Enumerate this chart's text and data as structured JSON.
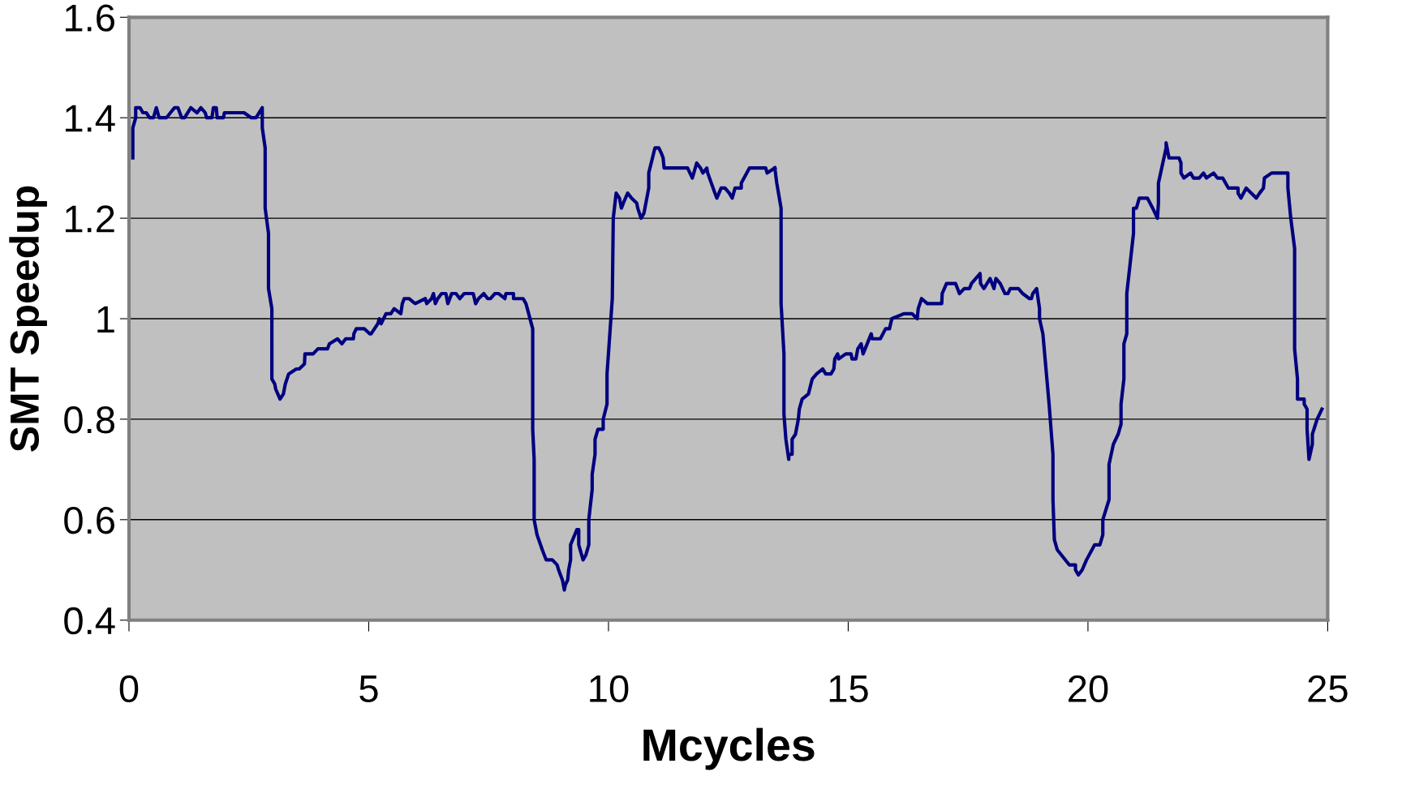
{
  "chart_data": {
    "type": "line",
    "xlabel": "Mcycles",
    "ylabel": "SMT Speedup",
    "xlim": [
      0,
      25
    ],
    "xticks": [
      0,
      5,
      10,
      15,
      20,
      25
    ],
    "ylim": [
      0.4,
      1.6
    ],
    "yticks": [
      0.4,
      0.6,
      0.8,
      1,
      1.2,
      1.4,
      1.6
    ],
    "grid": "y",
    "series": [
      {
        "color": "#000080",
        "x": [
          0.08,
          0.08,
          0.14,
          0.14,
          0.23,
          0.29,
          0.36,
          0.43,
          0.51,
          0.57,
          0.63,
          0.78,
          0.95,
          1.02,
          1.1,
          1.16,
          1.29,
          1.42,
          1.5,
          1.59,
          1.62,
          1.73,
          1.76,
          1.82,
          1.84,
          1.97,
          1.99,
          2.14,
          2.4,
          2.55,
          2.65,
          2.78,
          2.78,
          2.84,
          2.84,
          2.91,
          2.91,
          2.98,
          2.98,
          3.04,
          3.06,
          3.15,
          3.22,
          3.26,
          3.33,
          3.49,
          3.55,
          3.66,
          3.67,
          3.74,
          3.84,
          3.94,
          4.03,
          4.14,
          4.18,
          4.35,
          4.44,
          4.52,
          4.68,
          4.69,
          4.74,
          4.91,
          5.02,
          5.05,
          5.19,
          5.22,
          5.26,
          5.36,
          5.46,
          5.53,
          5.67,
          5.7,
          5.74,
          5.84,
          5.97,
          6.18,
          6.21,
          6.31,
          6.35,
          6.39,
          6.44,
          6.52,
          6.56,
          6.61,
          6.65,
          6.69,
          6.73,
          6.82,
          6.9,
          6.99,
          7.18,
          7.23,
          7.29,
          7.4,
          7.48,
          7.54,
          7.63,
          7.71,
          7.84,
          7.86,
          8.02,
          8.02,
          8.22,
          8.28,
          8.42,
          8.42,
          8.45,
          8.45,
          8.51,
          8.62,
          8.7,
          8.74,
          8.83,
          8.93,
          8.96,
          9.04,
          9.08,
          9.1,
          9.15,
          9.17,
          9.21,
          9.21,
          9.34,
          9.38,
          9.38,
          9.47,
          9.53,
          9.59,
          9.59,
          9.66,
          9.66,
          9.72,
          9.72,
          9.78,
          9.89,
          9.89,
          9.97,
          9.97,
          10.08,
          10.1,
          10.16,
          10.23,
          10.27,
          10.31,
          10.4,
          10.48,
          10.59,
          10.61,
          10.68,
          10.74,
          10.84,
          10.84,
          10.97,
          11.05,
          11.1,
          11.14,
          11.16,
          11.29,
          11.33,
          11.63,
          11.65,
          11.75,
          11.84,
          11.92,
          11.97,
          12.05,
          12.07,
          12.22,
          12.26,
          12.35,
          12.43,
          12.52,
          12.58,
          12.64,
          12.77,
          12.77,
          12.94,
          13.14,
          13.16,
          13.28,
          13.31,
          13.47
        ],
        "values": [
          1.32,
          1.38,
          1.4,
          1.42,
          1.42,
          1.41,
          1.41,
          1.4,
          1.4,
          1.42,
          1.4,
          1.4,
          1.42,
          1.42,
          1.4,
          1.4,
          1.42,
          1.41,
          1.42,
          1.41,
          1.4,
          1.4,
          1.42,
          1.42,
          1.4,
          1.4,
          1.41,
          1.41,
          1.41,
          1.4,
          1.4,
          1.42,
          1.38,
          1.34,
          1.22,
          1.17,
          1.06,
          1.02,
          0.88,
          0.87,
          0.86,
          0.84,
          0.85,
          0.87,
          0.89,
          0.9,
          0.9,
          0.91,
          0.93,
          0.93,
          0.93,
          0.94,
          0.94,
          0.94,
          0.95,
          0.96,
          0.95,
          0.96,
          0.96,
          0.97,
          0.98,
          0.98,
          0.97,
          0.97,
          0.99,
          1.0,
          0.99,
          1.01,
          1.01,
          1.02,
          1.01,
          1.03,
          1.04,
          1.04,
          1.03,
          1.04,
          1.03,
          1.04,
          1.05,
          1.03,
          1.04,
          1.05,
          1.05,
          1.05,
          1.03,
          1.04,
          1.05,
          1.05,
          1.04,
          1.05,
          1.05,
          1.03,
          1.04,
          1.05,
          1.04,
          1.04,
          1.05,
          1.05,
          1.04,
          1.05,
          1.05,
          1.04,
          1.04,
          1.03,
          0.98,
          0.78,
          0.72,
          0.6,
          0.57,
          0.54,
          0.52,
          0.52,
          0.52,
          0.51,
          0.5,
          0.48,
          0.46,
          0.47,
          0.48,
          0.5,
          0.52,
          0.55,
          0.58,
          0.58,
          0.55,
          0.52,
          0.53,
          0.55,
          0.6,
          0.66,
          0.69,
          0.73,
          0.76,
          0.78,
          0.78,
          0.8,
          0.83,
          0.89,
          1.04,
          1.2,
          1.25,
          1.24,
          1.22,
          1.23,
          1.25,
          1.24,
          1.23,
          1.22,
          1.2,
          1.21,
          1.26,
          1.29,
          1.34,
          1.34,
          1.33,
          1.32,
          1.3,
          1.3,
          1.3,
          1.3,
          1.3,
          1.28,
          1.31,
          1.3,
          1.29,
          1.3,
          1.29,
          1.25,
          1.24,
          1.26,
          1.26,
          1.25,
          1.24,
          1.26,
          1.26,
          1.27,
          1.3,
          1.3,
          1.3,
          1.3,
          1.29,
          1.3
        ]
      },
      {
        "color": "#000080",
        "x": [
          13.47,
          13.51,
          13.6,
          13.6,
          13.66,
          13.66,
          13.7,
          13.76,
          13.76,
          13.83,
          13.83,
          13.9,
          13.96,
          13.98,
          14.04,
          14.17,
          14.25,
          14.34,
          14.47,
          14.53,
          14.64,
          14.7,
          14.72,
          14.78,
          14.8,
          14.95,
          15.06,
          15.08,
          15.16,
          15.2,
          15.27,
          15.31,
          15.48,
          15.5,
          15.67,
          15.78,
          15.86,
          15.91,
          16.16,
          16.33,
          16.44,
          16.46,
          16.53,
          16.65,
          16.7,
          16.78,
          16.95,
          16.96,
          17.05,
          17.14,
          17.24,
          17.32,
          17.42,
          17.53,
          17.57,
          17.75,
          17.76,
          17.83,
          17.96,
          18.04,
          18.08,
          18.17,
          18.27,
          18.33,
          18.38,
          18.55,
          18.64,
          18.78,
          18.82,
          18.85,
          18.93,
          18.99,
          18.99,
          19.06,
          19.19,
          19.27,
          19.27,
          19.3,
          19.36,
          19.61,
          19.74,
          19.74,
          19.8,
          19.88,
          19.97,
          20.14,
          20.25,
          20.31,
          20.31,
          20.44,
          20.44,
          20.53,
          20.63,
          20.69,
          20.69,
          20.75,
          20.75,
          20.81,
          20.81,
          20.95,
          20.95,
          21.01,
          21.07,
          21.14,
          21.24,
          21.35,
          21.45,
          21.47,
          21.47,
          21.63,
          21.63,
          21.69,
          21.9,
          21.94,
          21.94,
          22.0,
          22.14,
          22.2,
          22.32,
          22.41,
          22.47,
          22.62,
          22.7,
          22.81,
          22.87,
          22.93,
          22.93,
          23.13,
          23.13,
          23.19,
          23.3,
          23.51,
          23.58,
          23.66,
          23.68,
          23.83,
          23.89,
          23.97,
          24.01,
          24.17,
          24.17,
          24.23,
          24.31,
          24.31,
          24.37,
          24.37,
          24.51,
          24.51,
          24.57,
          24.57,
          24.61,
          24.68,
          24.68,
          24.78,
          24.88
        ],
        "values": [
          1.3,
          1.27,
          1.22,
          1.03,
          0.93,
          0.81,
          0.76,
          0.72,
          0.73,
          0.73,
          0.76,
          0.77,
          0.8,
          0.82,
          0.84,
          0.85,
          0.88,
          0.89,
          0.9,
          0.89,
          0.89,
          0.9,
          0.92,
          0.93,
          0.92,
          0.93,
          0.93,
          0.92,
          0.92,
          0.94,
          0.95,
          0.93,
          0.97,
          0.96,
          0.96,
          0.98,
          0.98,
          1.0,
          1.01,
          1.01,
          1.0,
          1.02,
          1.04,
          1.03,
          1.03,
          1.03,
          1.03,
          1.05,
          1.07,
          1.07,
          1.07,
          1.05,
          1.06,
          1.06,
          1.07,
          1.09,
          1.07,
          1.06,
          1.08,
          1.06,
          1.08,
          1.07,
          1.05,
          1.05,
          1.06,
          1.06,
          1.05,
          1.04,
          1.04,
          1.05,
          1.06,
          1.02,
          1.0,
          0.97,
          0.83,
          0.73,
          0.64,
          0.56,
          0.54,
          0.51,
          0.51,
          0.5,
          0.49,
          0.5,
          0.52,
          0.55,
          0.55,
          0.57,
          0.6,
          0.64,
          0.71,
          0.75,
          0.77,
          0.79,
          0.83,
          0.88,
          0.95,
          0.97,
          1.05,
          1.17,
          1.22,
          1.22,
          1.24,
          1.24,
          1.24,
          1.22,
          1.2,
          1.23,
          1.27,
          1.34,
          1.35,
          1.32,
          1.32,
          1.31,
          1.29,
          1.28,
          1.29,
          1.28,
          1.28,
          1.29,
          1.28,
          1.29,
          1.28,
          1.28,
          1.27,
          1.26,
          1.26,
          1.26,
          1.25,
          1.24,
          1.26,
          1.24,
          1.25,
          1.26,
          1.28,
          1.29,
          1.29,
          1.29,
          1.29,
          1.29,
          1.26,
          1.2,
          1.14,
          0.94,
          0.88,
          0.84,
          0.84,
          0.83,
          0.82,
          0.78,
          0.72,
          0.75,
          0.77,
          0.8,
          0.82
        ]
      }
    ]
  }
}
